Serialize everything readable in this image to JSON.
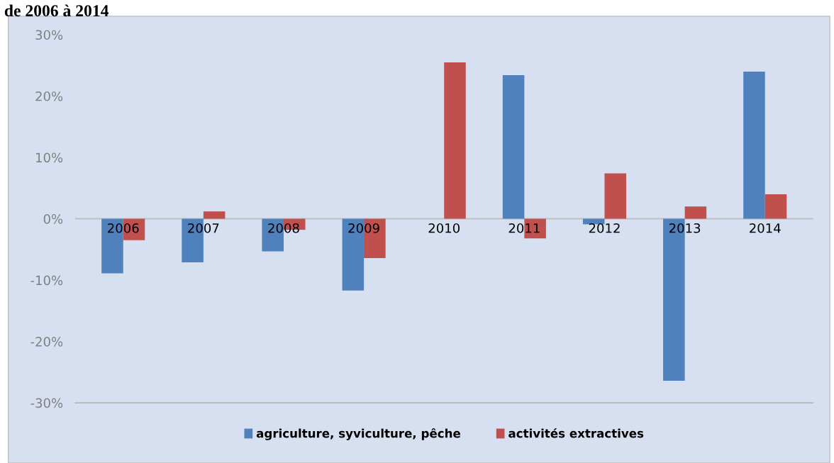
{
  "chart_data": {
    "type": "bar",
    "title": "de 2006 à 2014",
    "categories": [
      "2006",
      "2007",
      "2008",
      "2009",
      "2010",
      "2011",
      "2012",
      "2013",
      "2014"
    ],
    "series": [
      {
        "name": "agriculture, syviculture, pêche",
        "color": "#4f81bd",
        "values": [
          -8.9,
          -7.1,
          -5.3,
          -11.7,
          0,
          23.4,
          -0.9,
          -26.4,
          24.0
        ]
      },
      {
        "name": "activités extractives",
        "color": "#c0504d",
        "values": [
          -3.5,
          1.2,
          -1.8,
          -6.4,
          25.5,
          -3.2,
          7.4,
          2.0,
          4.0
        ]
      }
    ],
    "ylim": [
      -30,
      30
    ],
    "yticks": [
      {
        "value": -30,
        "label": "-30%"
      },
      {
        "value": -20,
        "label": "-20%"
      },
      {
        "value": -10,
        "label": "-10%"
      },
      {
        "value": 0,
        "label": "0%"
      },
      {
        "value": 10,
        "label": "10%"
      },
      {
        "value": 20,
        "label": "20%"
      },
      {
        "value": 30,
        "label": "30%"
      }
    ],
    "grid": false,
    "legend": "bottom"
  }
}
